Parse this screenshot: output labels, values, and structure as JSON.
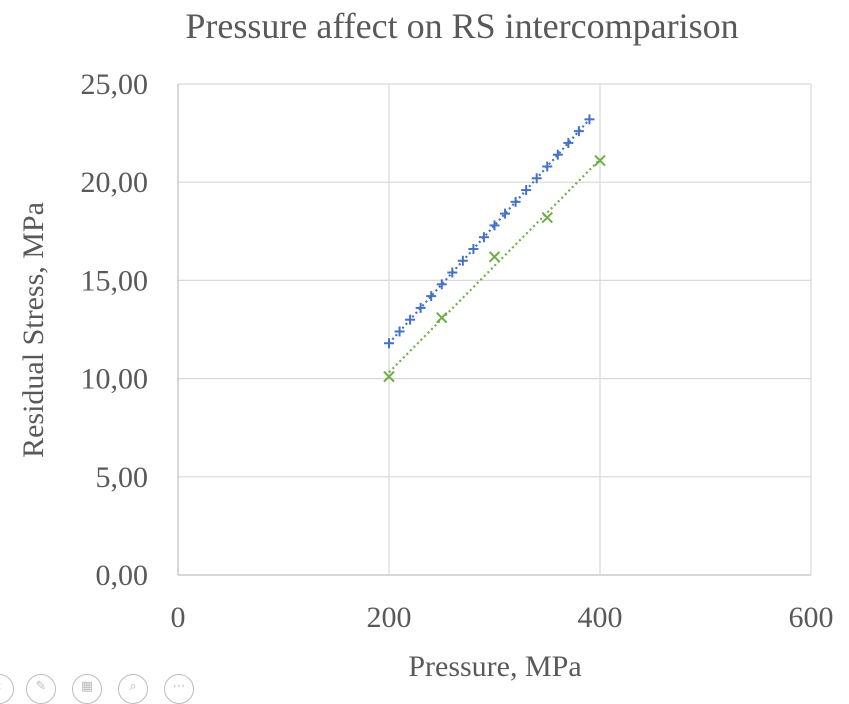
{
  "chart_data": {
    "type": "scatter",
    "title": "Pressure affect on RS intercomparison",
    "xlabel": "Pressure, MPa",
    "ylabel": "Residual Stress, MPa",
    "xlim": [
      0,
      600
    ],
    "ylim": [
      0,
      25
    ],
    "xticks": [
      0,
      200,
      400,
      600
    ],
    "xtick_labels": [
      "0",
      "200",
      "400",
      "600"
    ],
    "yticks": [
      0,
      5,
      10,
      15,
      20,
      25
    ],
    "ytick_labels": [
      "0,00",
      "5,00",
      "10,00",
      "15,00",
      "20,00",
      "25,00"
    ],
    "grid": true,
    "legend": "none",
    "series": [
      {
        "marker": "plus",
        "color": "#4472c4",
        "trendline": "linear-dotted",
        "x": [
          200,
          210,
          220,
          230,
          240,
          250,
          260,
          270,
          280,
          290,
          300,
          310,
          320,
          330,
          340,
          350,
          360,
          370,
          380,
          390
        ],
        "y": [
          11.8,
          12.4,
          13.0,
          13.6,
          14.2,
          14.8,
          15.4,
          16.0,
          16.6,
          17.2,
          17.8,
          18.4,
          19.0,
          19.6,
          20.2,
          20.8,
          21.4,
          22.0,
          22.6,
          23.2
        ]
      },
      {
        "marker": "cross",
        "color": "#70ad47",
        "trendline": "linear-dotted",
        "x": [
          200,
          250,
          300,
          350,
          400
        ],
        "y": [
          10.1,
          13.1,
          16.2,
          18.2,
          21.1
        ]
      }
    ]
  },
  "toolbar": {
    "icons": [
      {
        "name": "back-icon",
        "glyph": "‹"
      },
      {
        "name": "pen-icon",
        "glyph": "✎"
      },
      {
        "name": "slides-icon",
        "glyph": "▦"
      },
      {
        "name": "zoom-icon",
        "glyph": "⌕"
      },
      {
        "name": "more-icon",
        "glyph": "⋯"
      }
    ]
  }
}
